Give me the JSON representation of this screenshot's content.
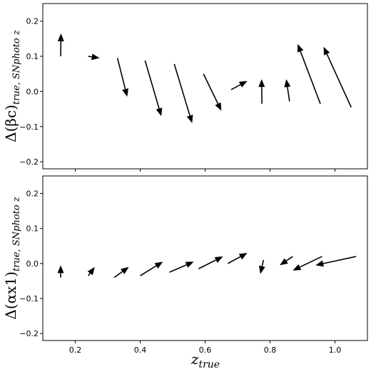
{
  "chart_data": {
    "type": "quiver",
    "x_ticks": [
      0.2,
      0.4,
      0.6,
      0.8,
      1.0
    ],
    "x_tick_labels": [
      "0.2",
      "0.4",
      "0.6",
      "0.8",
      "1.0"
    ],
    "xlabel": "z_true",
    "xlabel_main": "z",
    "xlabel_sub": "true",
    "xlim": [
      0.1,
      1.1
    ],
    "grid": false,
    "panels": [
      {
        "ylabel": "Δ(βc)_true, SNphoto z",
        "ylabel_main": "Δ(βc)",
        "ylabel_sub": "true, SNphoto z",
        "ylim": [
          -0.22,
          0.25
        ],
        "y_ticks": [
          -0.2,
          -0.1,
          0.0,
          0.1,
          0.2
        ],
        "y_tick_labels": [
          "−0.2",
          "−0.1",
          "0.0",
          "0.1",
          "0.2"
        ],
        "arrows": [
          {
            "x0": 0.155,
            "y0": 0.1,
            "x1": 0.156,
            "y1": 0.165
          },
          {
            "x0": 0.24,
            "y0": 0.1,
            "x1": 0.275,
            "y1": 0.095
          },
          {
            "x0": 0.33,
            "y0": 0.095,
            "x1": 0.36,
            "y1": -0.015
          },
          {
            "x0": 0.415,
            "y0": 0.088,
            "x1": 0.465,
            "y1": -0.07
          },
          {
            "x0": 0.505,
            "y0": 0.078,
            "x1": 0.56,
            "y1": -0.09
          },
          {
            "x0": 0.595,
            "y0": 0.05,
            "x1": 0.65,
            "y1": -0.055
          },
          {
            "x0": 0.68,
            "y0": 0.005,
            "x1": 0.73,
            "y1": 0.03
          },
          {
            "x0": 0.775,
            "y0": -0.035,
            "x1": 0.774,
            "y1": 0.035
          },
          {
            "x0": 0.86,
            "y0": -0.028,
            "x1": 0.85,
            "y1": 0.035
          },
          {
            "x0": 0.955,
            "y0": -0.035,
            "x1": 0.885,
            "y1": 0.135
          },
          {
            "x0": 1.05,
            "y0": -0.045,
            "x1": 0.965,
            "y1": 0.127
          }
        ]
      },
      {
        "ylabel": "Δ(αx1)_true, SNphoto z",
        "ylabel_main": "Δ(αx1)",
        "ylabel_sub": "true, SNphoto z",
        "ylim": [
          -0.22,
          0.25
        ],
        "y_ticks": [
          -0.2,
          -0.1,
          0.0,
          0.1,
          0.2
        ],
        "y_tick_labels": [
          "−0.2",
          "−0.1",
          "0.0",
          "0.1",
          "0.2"
        ],
        "arrows": [
          {
            "x0": 0.155,
            "y0": -0.04,
            "x1": 0.155,
            "y1": -0.005
          },
          {
            "x0": 0.24,
            "y0": -0.035,
            "x1": 0.26,
            "y1": -0.01
          },
          {
            "x0": 0.32,
            "y0": -0.04,
            "x1": 0.365,
            "y1": -0.01
          },
          {
            "x0": 0.4,
            "y0": -0.035,
            "x1": 0.47,
            "y1": 0.005
          },
          {
            "x0": 0.49,
            "y0": -0.025,
            "x1": 0.565,
            "y1": 0.005
          },
          {
            "x0": 0.58,
            "y0": -0.015,
            "x1": 0.655,
            "y1": 0.02
          },
          {
            "x0": 0.67,
            "y0": 0.0,
            "x1": 0.73,
            "y1": 0.03
          },
          {
            "x0": 0.78,
            "y0": 0.01,
            "x1": 0.77,
            "y1": -0.03
          },
          {
            "x0": 0.87,
            "y0": 0.02,
            "x1": 0.83,
            "y1": -0.005
          },
          {
            "x0": 0.96,
            "y0": 0.02,
            "x1": 0.87,
            "y1": -0.02
          },
          {
            "x0": 1.065,
            "y0": 0.02,
            "x1": 0.94,
            "y1": -0.005
          }
        ]
      }
    ]
  }
}
